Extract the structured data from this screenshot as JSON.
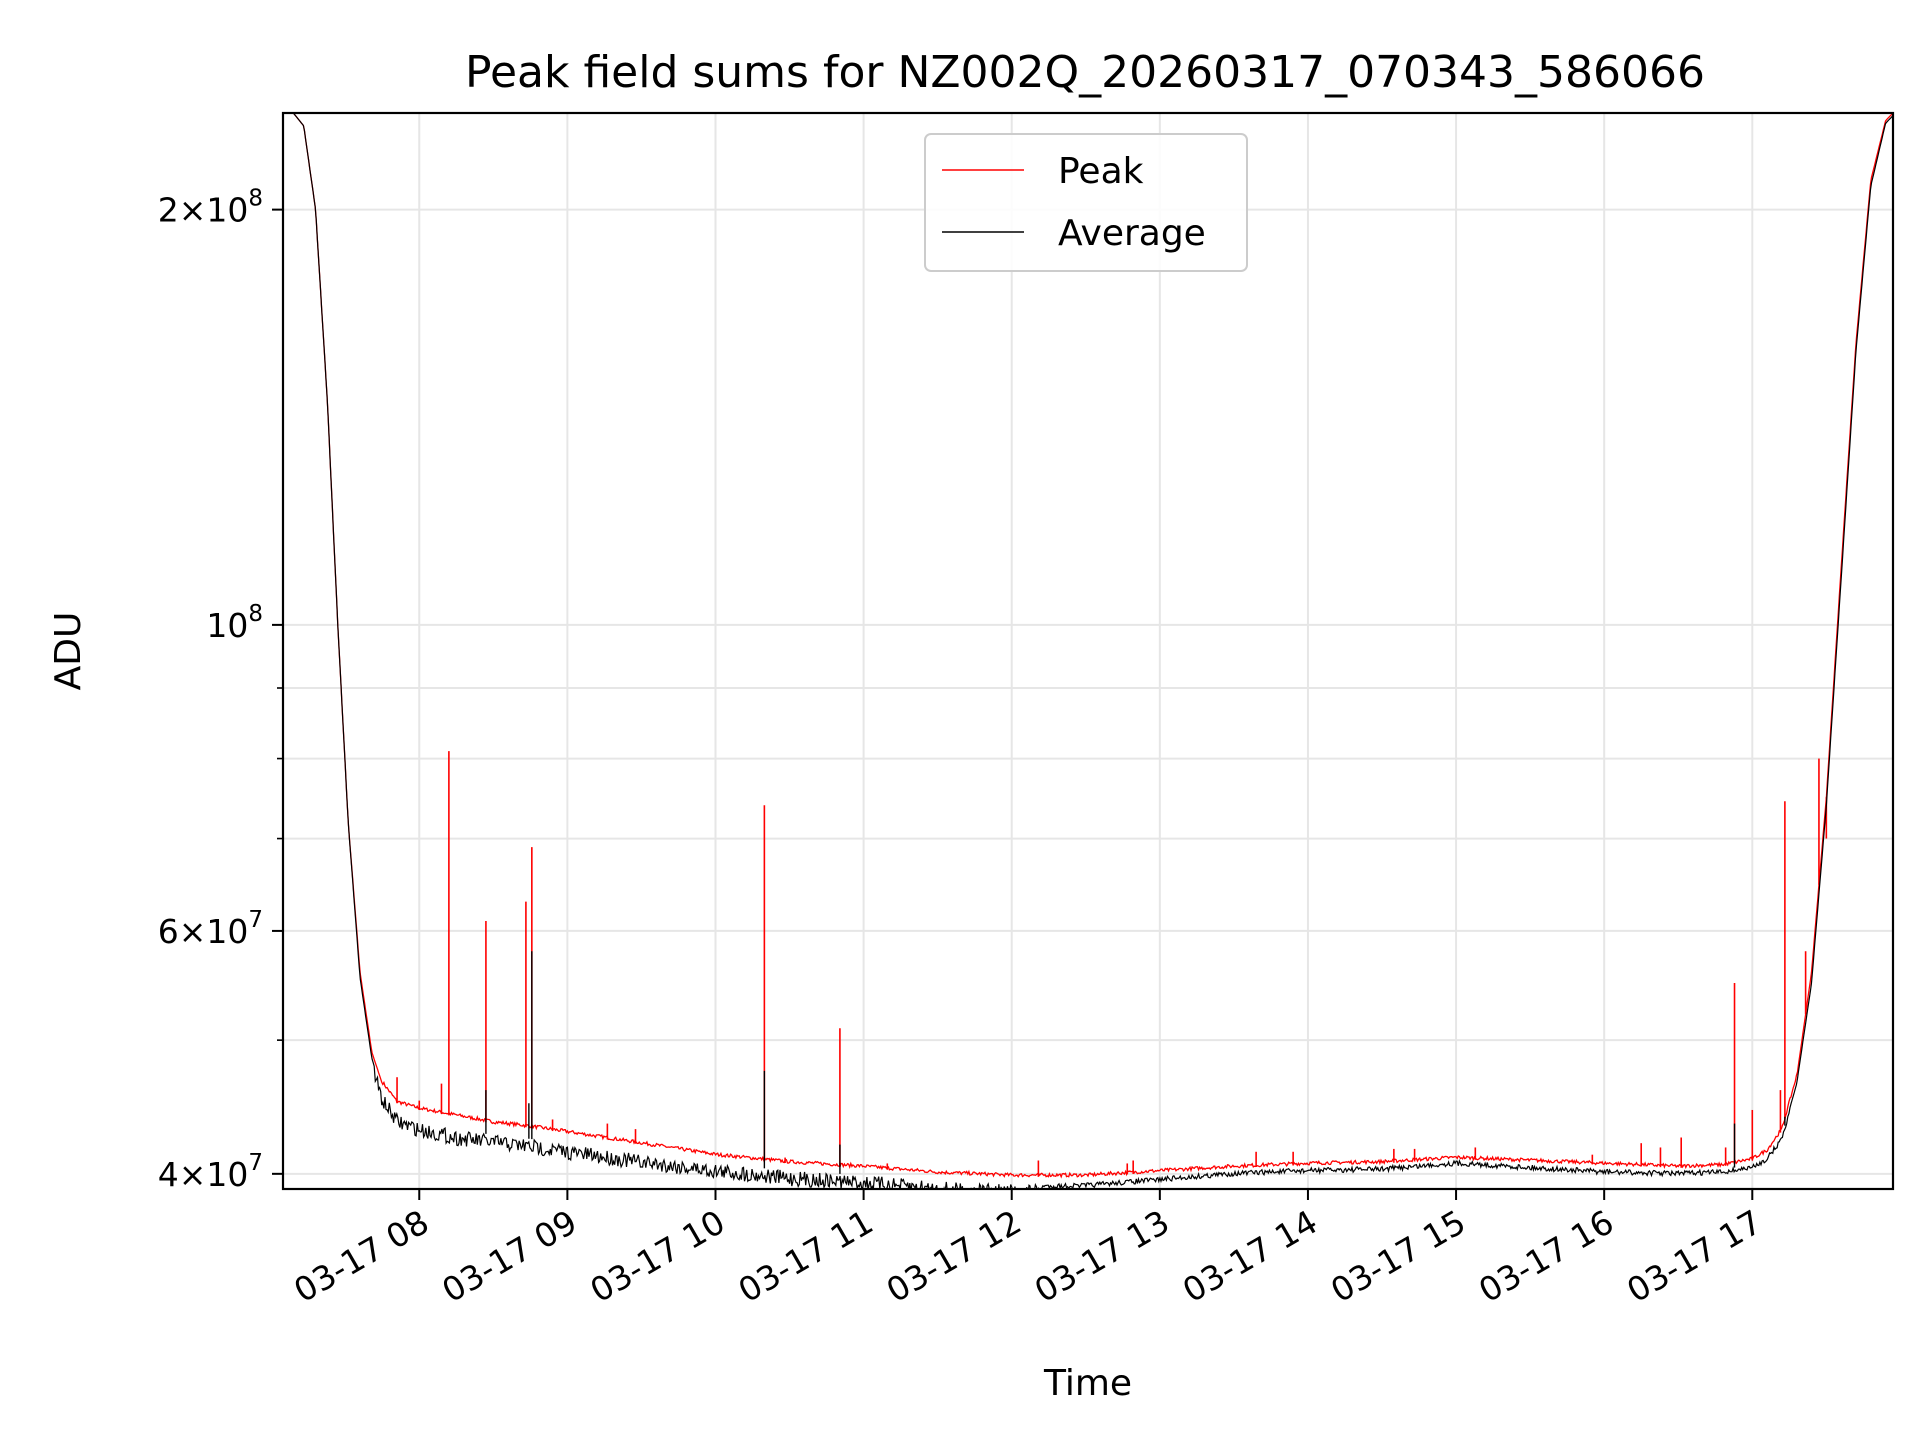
{
  "chart_data": {
    "type": "line",
    "title": "Peak field sums for NZ002Q_20260317_070343_586066",
    "xlabel": "Time",
    "ylabel": "ADU",
    "y_scale": "log",
    "ylim": [
      39000000,
      235000000
    ],
    "xlim_hours": [
      7.08,
      17.95
    ],
    "grid": true,
    "legend_position": "upper center",
    "x_ticks": [
      {
        "hour": 8,
        "label": "03-17 08"
      },
      {
        "hour": 9,
        "label": "03-17 09"
      },
      {
        "hour": 10,
        "label": "03-17 10"
      },
      {
        "hour": 11,
        "label": "03-17 11"
      },
      {
        "hour": 12,
        "label": "03-17 12"
      },
      {
        "hour": 13,
        "label": "03-17 13"
      },
      {
        "hour": 14,
        "label": "03-17 14"
      },
      {
        "hour": 15,
        "label": "03-17 15"
      },
      {
        "hour": 16,
        "label": "03-17 16"
      },
      {
        "hour": 17,
        "label": "03-17 17"
      }
    ],
    "y_ticks": [
      {
        "value": 40000000,
        "mantissa": "4",
        "exponent": "7"
      },
      {
        "value": 60000000,
        "mantissa": "6",
        "exponent": "7"
      },
      {
        "value": 100000000,
        "mantissa": "",
        "exponent": "8"
      },
      {
        "value": 200000000,
        "mantissa": "2",
        "exponent": "8"
      }
    ],
    "y_minor_ticks": [
      50000000,
      70000000,
      80000000,
      90000000
    ],
    "series": [
      {
        "name": "Peak",
        "color": "#ff0000",
        "x": [
          7.08,
          7.15,
          7.22,
          7.3,
          7.38,
          7.45,
          7.52,
          7.6,
          7.68,
          7.75,
          7.85,
          8.0,
          8.25,
          8.5,
          8.75,
          9.0,
          9.5,
          10.0,
          10.5,
          11.0,
          11.5,
          12.0,
          12.5,
          13.0,
          13.5,
          14.0,
          14.5,
          15.0,
          15.5,
          16.0,
          16.5,
          16.8,
          17.0,
          17.1,
          17.2,
          17.3,
          17.4,
          17.5,
          17.6,
          17.7,
          17.8,
          17.9,
          17.95
        ],
        "y": [
          235000000,
          235000000,
          230000000,
          200000000,
          145000000,
          100000000,
          72000000,
          56000000,
          49000000,
          46500000,
          45000000,
          44500000,
          44000000,
          43500000,
          43200000,
          42800000,
          42000000,
          41200000,
          40700000,
          40400000,
          40000000,
          39800000,
          39800000,
          40100000,
          40400000,
          40600000,
          40700000,
          41000000,
          40800000,
          40600000,
          40400000,
          40500000,
          40900000,
          41500000,
          43000000,
          47000000,
          56000000,
          75000000,
          110000000,
          160000000,
          210000000,
          232000000,
          235000000
        ],
        "spikes": [
          {
            "x": 7.85,
            "y": 47000000
          },
          {
            "x": 8.0,
            "y": 45200000
          },
          {
            "x": 8.15,
            "y": 46500000
          },
          {
            "x": 8.2,
            "y": 81000000
          },
          {
            "x": 8.45,
            "y": 61000000
          },
          {
            "x": 8.72,
            "y": 63000000
          },
          {
            "x": 8.76,
            "y": 69000000
          },
          {
            "x": 8.9,
            "y": 43800000
          },
          {
            "x": 9.27,
            "y": 43500000
          },
          {
            "x": 9.46,
            "y": 43100000
          },
          {
            "x": 10.33,
            "y": 74000000
          },
          {
            "x": 10.47,
            "y": 41100000
          },
          {
            "x": 10.84,
            "y": 51000000
          },
          {
            "x": 11.16,
            "y": 40700000
          },
          {
            "x": 12.18,
            "y": 40900000
          },
          {
            "x": 12.78,
            "y": 40700000
          },
          {
            "x": 12.82,
            "y": 40900000
          },
          {
            "x": 13.65,
            "y": 41500000
          },
          {
            "x": 13.9,
            "y": 41500000
          },
          {
            "x": 14.58,
            "y": 41700000
          },
          {
            "x": 14.72,
            "y": 41700000
          },
          {
            "x": 15.13,
            "y": 41800000
          },
          {
            "x": 15.92,
            "y": 41300000
          },
          {
            "x": 16.25,
            "y": 42100000
          },
          {
            "x": 16.38,
            "y": 41800000
          },
          {
            "x": 16.52,
            "y": 42500000
          },
          {
            "x": 16.82,
            "y": 41800000
          },
          {
            "x": 16.88,
            "y": 55000000
          },
          {
            "x": 17.0,
            "y": 44500000
          },
          {
            "x": 17.19,
            "y": 46000000
          },
          {
            "x": 17.22,
            "y": 74500000
          },
          {
            "x": 17.36,
            "y": 58000000
          },
          {
            "x": 17.45,
            "y": 80000000
          },
          {
            "x": 17.5,
            "y": 70000000
          }
        ]
      },
      {
        "name": "Average",
        "color": "#000000",
        "x": [
          7.08,
          7.15,
          7.22,
          7.3,
          7.38,
          7.45,
          7.52,
          7.6,
          7.68,
          7.75,
          7.85,
          8.0,
          8.25,
          8.5,
          8.75,
          9.0,
          9.5,
          10.0,
          10.5,
          11.0,
          11.5,
          12.0,
          12.5,
          13.0,
          13.5,
          14.0,
          14.5,
          15.0,
          15.5,
          16.0,
          16.5,
          16.8,
          17.0,
          17.1,
          17.2,
          17.3,
          17.4,
          17.5,
          17.6,
          17.7,
          17.8,
          17.9,
          17.95
        ],
        "y": [
          235000000,
          235000000,
          230000000,
          200000000,
          145000000,
          100000000,
          72000000,
          55500000,
          48500000,
          45800000,
          44200000,
          43600000,
          43000000,
          42700000,
          42400000,
          42000000,
          41300000,
          40700000,
          40200000,
          39900000,
          39500000,
          39300000,
          39400000,
          39800000,
          40200000,
          40400000,
          40500000,
          40900000,
          40600000,
          40300000,
          40200000,
          40300000,
          40600000,
          41200000,
          42600000,
          46500000,
          55000000,
          74000000,
          108000000,
          158000000,
          208000000,
          231000000,
          234000000
        ],
        "noise_amplitude": 0.025
      }
    ]
  }
}
